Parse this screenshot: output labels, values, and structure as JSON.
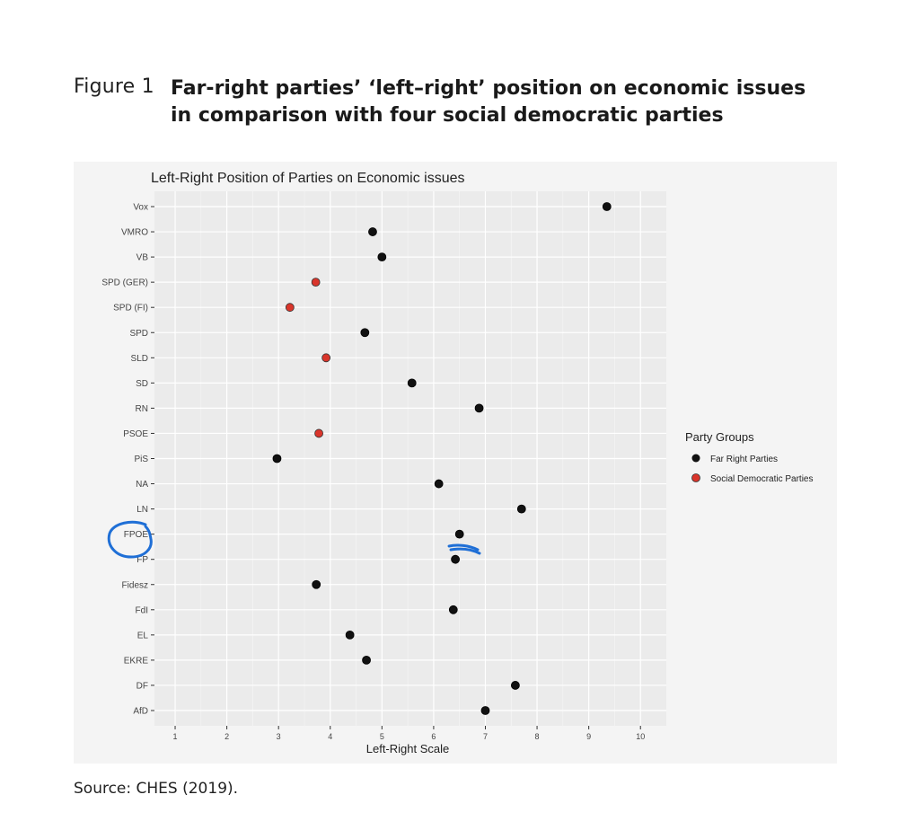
{
  "figure": {
    "label": "Figure 1",
    "title_line1": "Far-right parties’ ‘left–right’ position on economic issues",
    "title_line2": "in comparison with four social democratic parties",
    "source": "Source: CHES (2019)."
  },
  "chart_data": {
    "type": "scatter",
    "title": "Left-Right Position of Parties on Economic issues",
    "xlabel": "Left-Right Scale",
    "ylabel": "",
    "xlim": [
      0.6,
      10.5
    ],
    "xticks": [
      1,
      2,
      3,
      4,
      5,
      6,
      7,
      8,
      9,
      10
    ],
    "grid": true,
    "legend": {
      "title": "Party Groups",
      "placement": "right",
      "entries": [
        {
          "name": "Far Right Parties",
          "color": "#111111"
        },
        {
          "name": "Social Democratic Parties",
          "color": "#d9352b"
        }
      ]
    },
    "categories": [
      "Vox",
      "VMRO",
      "VB",
      "SPD (GER)",
      "SPD (FI)",
      "SPD",
      "SLD",
      "SD",
      "RN",
      "PSOE",
      "PiS",
      "NA",
      "LN",
      "FPOE",
      "FP",
      "Fidesz",
      "FdI",
      "EL",
      "EKRE",
      "DF",
      "AfD"
    ],
    "series": [
      {
        "name": "Far Right Parties",
        "color": "#111111",
        "points": [
          {
            "party": "Vox",
            "x": 9.35
          },
          {
            "party": "VMRO",
            "x": 4.82
          },
          {
            "party": "VB",
            "x": 5.0
          },
          {
            "party": "SPD",
            "x": 4.67
          },
          {
            "party": "SD",
            "x": 5.58
          },
          {
            "party": "RN",
            "x": 6.88
          },
          {
            "party": "PiS",
            "x": 2.97
          },
          {
            "party": "NA",
            "x": 6.1
          },
          {
            "party": "LN",
            "x": 7.7
          },
          {
            "party": "FPOE",
            "x": 6.5
          },
          {
            "party": "FP",
            "x": 6.42
          },
          {
            "party": "Fidesz",
            "x": 3.73
          },
          {
            "party": "FdI",
            "x": 6.38
          },
          {
            "party": "EL",
            "x": 4.38
          },
          {
            "party": "EKRE",
            "x": 4.7
          },
          {
            "party": "DF",
            "x": 7.58
          },
          {
            "party": "AfD",
            "x": 7.0
          }
        ]
      },
      {
        "name": "Social Democratic Parties",
        "color": "#d9352b",
        "points": [
          {
            "party": "SPD (GER)",
            "x": 3.72
          },
          {
            "party": "SPD (FI)",
            "x": 3.22
          },
          {
            "party": "SLD",
            "x": 3.92
          },
          {
            "party": "PSOE",
            "x": 3.78
          }
        ]
      }
    ],
    "annotations": {
      "pen_color": "#1f6fd6",
      "circled_label": "FPOE"
    }
  }
}
